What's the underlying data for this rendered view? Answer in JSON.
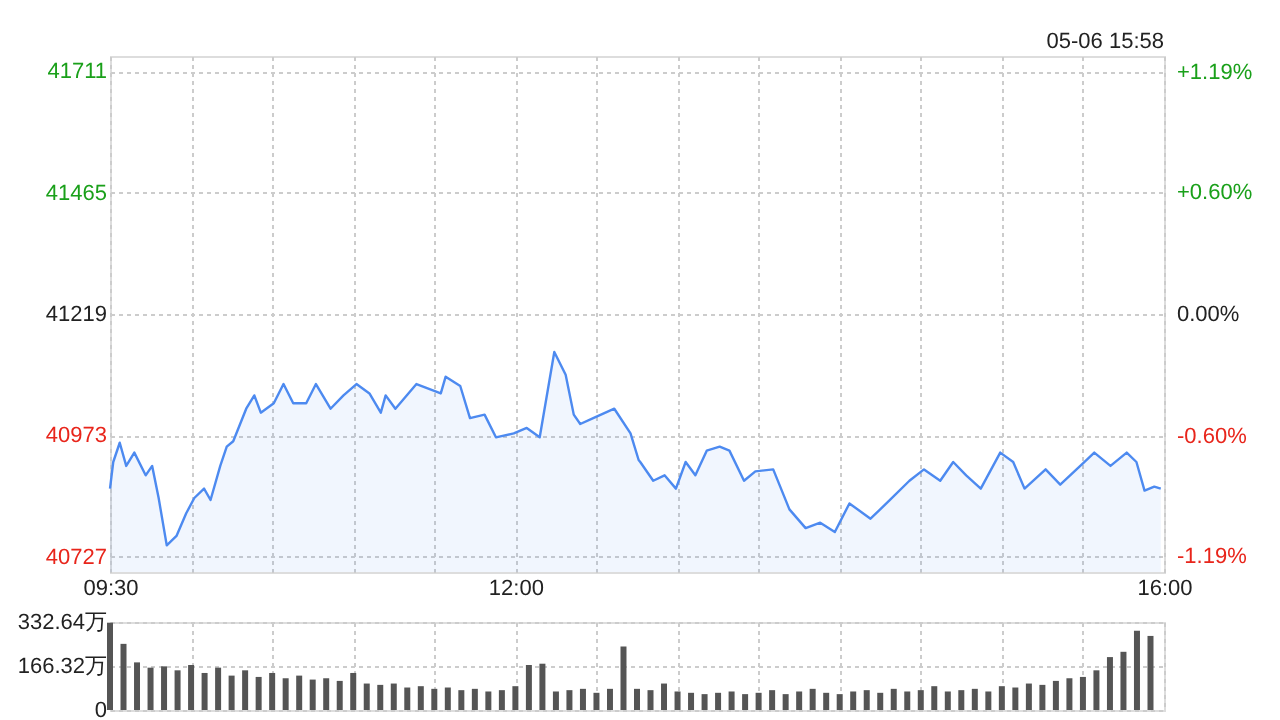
{
  "chart_data": [
    {
      "type": "area",
      "annotations": [
        "05-06 15:58"
      ],
      "x": [
        9.5,
        9.52,
        9.56,
        9.6,
        9.65,
        9.72,
        9.76,
        9.8,
        9.85,
        9.91,
        9.97,
        10.02,
        10.08,
        10.12,
        10.18,
        10.22,
        10.26,
        10.34,
        10.39,
        10.43,
        10.51,
        10.57,
        10.63,
        10.71,
        10.77,
        10.86,
        10.94,
        11.02,
        11.1,
        11.17,
        11.2,
        11.26,
        11.39,
        11.54,
        11.57,
        11.66,
        11.72,
        11.81,
        11.88,
        11.99,
        12.07,
        12.15,
        12.24,
        12.31,
        12.36,
        12.4,
        12.48,
        12.61,
        12.71,
        12.76,
        12.77,
        12.85,
        12.92,
        12.99,
        13.05,
        13.11,
        13.18,
        13.26,
        13.32,
        13.41,
        13.48,
        13.59,
        13.69,
        13.79,
        13.88,
        13.97,
        14.06,
        14.19,
        14.31,
        14.43,
        14.52,
        14.62,
        14.7,
        14.78,
        14.87,
        14.99,
        15.07,
        15.14,
        15.27,
        15.36,
        15.51,
        15.57,
        15.67,
        15.77,
        15.83,
        15.88,
        15.94,
        15.98
      ],
      "series": [
        {
          "color": "#4d8af0",
          "values": [
            40865,
            40919,
            40958,
            40911,
            40938,
            40892,
            40911,
            40846,
            40750,
            40769,
            40815,
            40846,
            40865,
            40842,
            40911,
            40950,
            40961,
            41027,
            41054,
            41019,
            41038,
            41077,
            41038,
            41038,
            41077,
            41027,
            41054,
            41077,
            41058,
            41019,
            41054,
            41027,
            41077,
            41058,
            41092,
            41073,
            41008,
            41015,
            40969,
            40977,
            40988,
            40969,
            41142,
            41096,
            41015,
            40996,
            41008,
            41027,
            40977,
            40923,
            40919,
            40881,
            40892,
            40865,
            40919,
            40892,
            40942,
            40950,
            40942,
            40881,
            40900,
            40904,
            40823,
            40785,
            40796,
            40777,
            40835,
            40804,
            40842,
            40881,
            40904,
            40881,
            40919,
            40892,
            40865,
            40938,
            40919,
            40865,
            40904,
            40873,
            40919,
            40938,
            40911,
            40938,
            40919,
            40861,
            40869,
            40865
          ]
        }
      ],
      "xlim": [
        9.5,
        16
      ],
      "xticks": [
        {
          "value": 9.5,
          "label": "09:30"
        },
        {
          "value": 10,
          "label": null
        },
        {
          "value": 10.5,
          "label": null
        },
        {
          "value": 11,
          "label": null
        },
        {
          "value": 11.5,
          "label": null
        },
        {
          "value": 12,
          "label": "12:00"
        },
        {
          "value": 12.5,
          "label": null
        },
        {
          "value": 13,
          "label": null
        },
        {
          "value": 13.5,
          "label": null
        },
        {
          "value": 14,
          "label": null
        },
        {
          "value": 14.5,
          "label": null
        },
        {
          "value": 15,
          "label": null
        },
        {
          "value": 15.5,
          "label": null
        },
        {
          "value": 16,
          "label": "16:00"
        }
      ],
      "ylim": [
        40696,
        41742
      ],
      "yticks": [
        40727,
        40973,
        41219,
        41465,
        41711
      ],
      "y2lim": [
        -1.2688,
        1.2688
      ],
      "y2ticks": [
        {
          "value": -1.19,
          "label": "-1.19%"
        },
        {
          "value": -0.6,
          "label": "-0.60%"
        },
        {
          "value": 0,
          "label": "0.00%"
        },
        {
          "value": 0.6,
          "label": "+0.60%"
        },
        {
          "value": 1.19,
          "label": "+1.19%"
        }
      ],
      "grid": true
    },
    {
      "type": "bar",
      "tick_labels": "y",
      "grid": true,
      "x": [
        9.5,
        9.5833,
        9.6667,
        9.75,
        9.8333,
        9.9167,
        10,
        10.0833,
        10.1667,
        10.25,
        10.3333,
        10.4167,
        10.5,
        10.5833,
        10.6667,
        10.75,
        10.8333,
        10.9167,
        11,
        11.0833,
        11.1667,
        11.25,
        11.3333,
        11.4167,
        11.5,
        11.5833,
        11.6667,
        11.75,
        11.8333,
        11.9167,
        12,
        12.0833,
        12.1667,
        12.25,
        12.3333,
        12.4167,
        12.5,
        12.5833,
        12.6667,
        12.75,
        12.8333,
        12.9167,
        13,
        13.0833,
        13.1667,
        13.25,
        13.3333,
        13.4167,
        13.5,
        13.5833,
        13.6667,
        13.75,
        13.8333,
        13.9167,
        14,
        14.0833,
        14.1667,
        14.25,
        14.3333,
        14.4167,
        14.5,
        14.5833,
        14.6667,
        14.75,
        14.8333,
        14.9167,
        15,
        15.0833,
        15.1667,
        15.25,
        15.3333,
        15.4167,
        15.5,
        15.5833,
        15.6667,
        15.75,
        15.8333,
        15.9167
      ],
      "series": [
        {
          "color": "#555555",
          "values": [
            330,
            250,
            180,
            160,
            165,
            150,
            170,
            140,
            160,
            130,
            150,
            125,
            140,
            120,
            130,
            115,
            120,
            110,
            140,
            100,
            95,
            100,
            85,
            90,
            80,
            85,
            75,
            80,
            70,
            75,
            90,
            170,
            175,
            70,
            75,
            80,
            65,
            80,
            240,
            80,
            75,
            100,
            70,
            65,
            60,
            65,
            70,
            60,
            65,
            75,
            60,
            70,
            80,
            65,
            60,
            70,
            75,
            65,
            80,
            70,
            75,
            90,
            70,
            75,
            80,
            70,
            90,
            85,
            100,
            95,
            110,
            120,
            125,
            150,
            200,
            220,
            300,
            280
          ]
        }
      ],
      "xlim": [
        9.5,
        16
      ],
      "xticks": [
        9.5,
        10,
        10.5,
        11,
        11.5,
        12,
        12.5,
        13,
        13.5,
        14,
        14.5,
        15,
        15.5,
        16
      ],
      "ylim": [
        0,
        332.64
      ],
      "yticks": [
        0,
        {
          "value": 166.32,
          "label": "166.32万"
        },
        {
          "value": 332.64,
          "label": "332.64万"
        }
      ]
    }
  ]
}
